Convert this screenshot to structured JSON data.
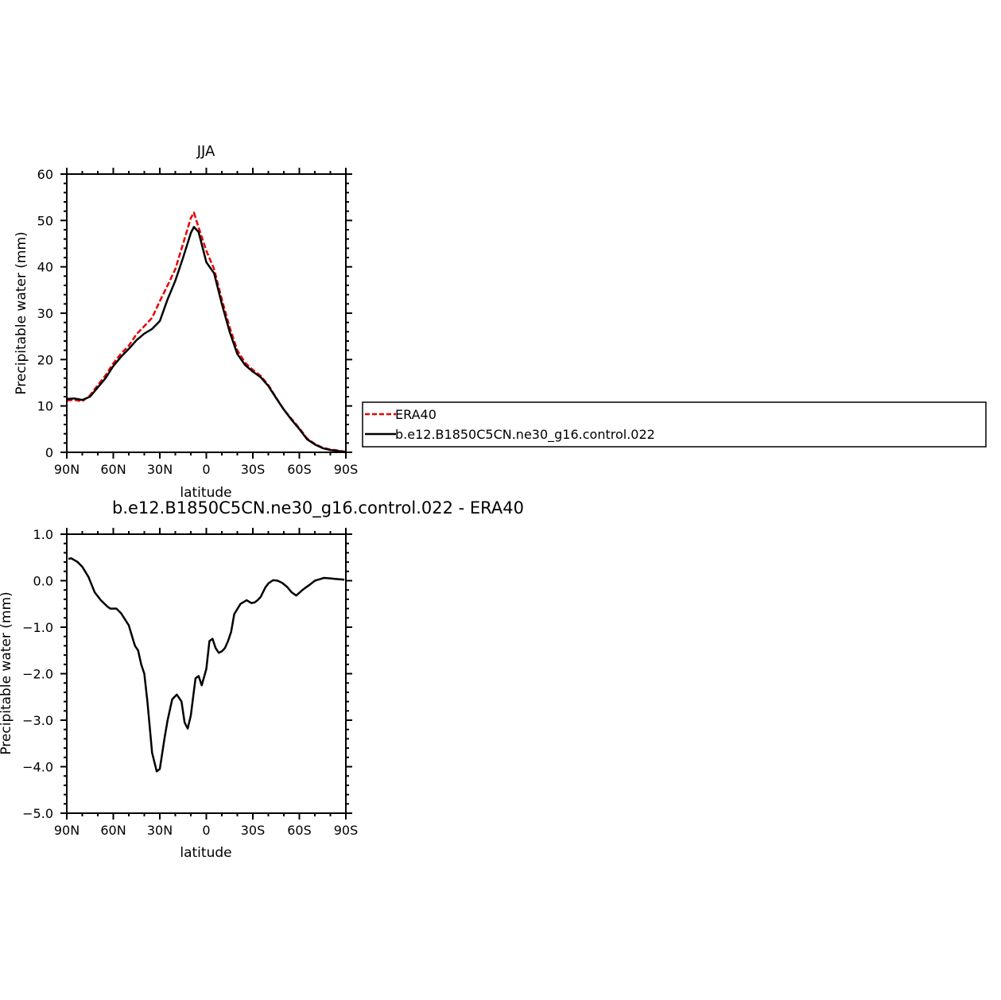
{
  "chart_data": [
    {
      "type": "line",
      "title": "JJA",
      "xlabel": "latitude",
      "ylabel": "Precipitable water (mm)",
      "xlim": [
        90,
        -90
      ],
      "ylim": [
        0,
        60
      ],
      "xticks": [
        {
          "v": 90,
          "label": "90N"
        },
        {
          "v": 60,
          "label": "60N"
        },
        {
          "v": 30,
          "label": "30N"
        },
        {
          "v": 0,
          "label": "0"
        },
        {
          "v": -30,
          "label": "30S"
        },
        {
          "v": -60,
          "label": "60S"
        },
        {
          "v": -90,
          "label": "90S"
        }
      ],
      "yticks": [
        {
          "v": 0,
          "label": "0"
        },
        {
          "v": 10,
          "label": "10"
        },
        {
          "v": 20,
          "label": "20"
        },
        {
          "v": 30,
          "label": "30"
        },
        {
          "v": 40,
          "label": "40"
        },
        {
          "v": 50,
          "label": "50"
        },
        {
          "v": 60,
          "label": "60"
        }
      ],
      "legend": {
        "position": "right",
        "entries": [
          "ERA40",
          "b.e12.B1850C5CN.ne30_g16.control.022"
        ]
      },
      "series": [
        {
          "name": "ERA40",
          "color": "#e60000",
          "dash": "dashed",
          "x": [
            90,
            85,
            80,
            75,
            70,
            65,
            60,
            55,
            50,
            45,
            40,
            35,
            30,
            25,
            20,
            15,
            10,
            8,
            5,
            0,
            -5,
            -10,
            -15,
            -20,
            -25,
            -30,
            -35,
            -40,
            -45,
            -50,
            -55,
            -60,
            -65,
            -70,
            -75,
            -80,
            -85,
            -90
          ],
          "y": [
            11.2,
            11.3,
            11.0,
            12.3,
            14.5,
            16.6,
            19.2,
            21.3,
            23.0,
            25.5,
            27.2,
            29.0,
            32.6,
            36.0,
            39.5,
            45.0,
            50.5,
            51.7,
            48.5,
            43.5,
            39.5,
            33.0,
            27.0,
            22.0,
            19.3,
            17.8,
            16.5,
            14.5,
            11.8,
            9.2,
            7.2,
            5.2,
            3.0,
            1.8,
            1.0,
            0.6,
            0.4,
            0.1
          ]
        },
        {
          "name": "b.e12.B1850C5CN.ne30_g16.control.022",
          "color": "#000000",
          "dash": "solid",
          "x": [
            90,
            85,
            80,
            75,
            70,
            65,
            60,
            55,
            50,
            45,
            40,
            35,
            30,
            25,
            20,
            15,
            10,
            8,
            5,
            0,
            -5,
            -10,
            -15,
            -20,
            -25,
            -30,
            -35,
            -40,
            -45,
            -50,
            -55,
            -60,
            -65,
            -70,
            -75,
            -80,
            -85,
            -90
          ],
          "y": [
            11.5,
            11.6,
            11.3,
            12.0,
            14.0,
            16.0,
            18.6,
            20.6,
            22.3,
            24.2,
            25.6,
            26.6,
            28.3,
            33.0,
            37.0,
            42.0,
            47.3,
            48.6,
            47.5,
            41.0,
            38.6,
            32.0,
            26.0,
            21.2,
            18.8,
            17.4,
            16.2,
            14.3,
            11.7,
            9.2,
            7.0,
            5.0,
            2.8,
            1.7,
            0.9,
            0.5,
            0.3,
            0.0
          ]
        }
      ]
    },
    {
      "type": "line",
      "title": "b.e12.B1850C5CN.ne30_g16.control.022 - ERA40",
      "xlabel": "latitude",
      "ylabel": "Precipitable water (mm)",
      "xlim": [
        90,
        -90
      ],
      "ylim": [
        -5.0,
        1.0
      ],
      "xticks": [
        {
          "v": 90,
          "label": "90N"
        },
        {
          "v": 60,
          "label": "60N"
        },
        {
          "v": 30,
          "label": "30N"
        },
        {
          "v": 0,
          "label": "0"
        },
        {
          "v": -30,
          "label": "30S"
        },
        {
          "v": -60,
          "label": "60S"
        },
        {
          "v": -90,
          "label": "90S"
        }
      ],
      "yticks": [
        {
          "v": 1.0,
          "label": "1.0"
        },
        {
          "v": 0.0,
          "label": "0.0"
        },
        {
          "v": -1.0,
          "label": "−1.0"
        },
        {
          "v": -2.0,
          "label": "−2.0"
        },
        {
          "v": -3.0,
          "label": "−3.0"
        },
        {
          "v": -4.0,
          "label": "−4.0"
        },
        {
          "v": -5.0,
          "label": "−5.0"
        }
      ],
      "series": [
        {
          "color": "#000000",
          "dash": "solid",
          "x": [
            89,
            87,
            83,
            80,
            76,
            72,
            68,
            64,
            62,
            58,
            55,
            50,
            47,
            46,
            44,
            42,
            40,
            38,
            35,
            32,
            30,
            27,
            25,
            22,
            19,
            16,
            14,
            12,
            10,
            7,
            5,
            3,
            0,
            -2,
            -4,
            -6,
            -8,
            -10,
            -12,
            -14,
            -16,
            -18,
            -22,
            -26,
            -29,
            -31,
            -33,
            -35,
            -38,
            -40,
            -43,
            -46,
            -49,
            -52,
            -55,
            -58,
            -62,
            -64,
            -67,
            -70,
            -73,
            -76,
            -80,
            -83,
            -86,
            -89
          ],
          "y": [
            0.47,
            0.48,
            0.4,
            0.3,
            0.08,
            -0.25,
            -0.42,
            -0.55,
            -0.6,
            -0.6,
            -0.7,
            -0.96,
            -1.3,
            -1.4,
            -1.5,
            -1.8,
            -2.0,
            -2.6,
            -3.7,
            -4.1,
            -4.05,
            -3.4,
            -3.0,
            -2.55,
            -2.45,
            -2.6,
            -3.05,
            -3.18,
            -2.9,
            -2.1,
            -2.05,
            -2.25,
            -1.9,
            -1.3,
            -1.25,
            -1.45,
            -1.55,
            -1.52,
            -1.45,
            -1.3,
            -1.1,
            -0.72,
            -0.5,
            -0.42,
            -0.48,
            -0.47,
            -0.42,
            -0.35,
            -0.15,
            -0.06,
            0.01,
            0.0,
            -0.05,
            -0.13,
            -0.25,
            -0.32,
            -0.2,
            -0.15,
            -0.08,
            0.0,
            0.03,
            0.06,
            0.05,
            0.04,
            0.03,
            0.02
          ]
        }
      ]
    }
  ]
}
